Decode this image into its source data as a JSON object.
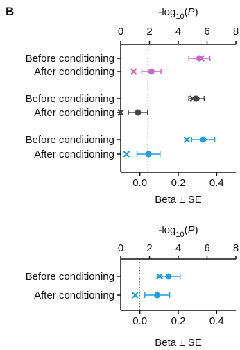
{
  "panel_letter": "B",
  "chart_data": [
    {
      "type": "scatter",
      "title": "",
      "top_axis": {
        "label_prefix": "-log",
        "label_sub": "10",
        "label_open": "(",
        "label_italic": "P",
        "label_close": ")",
        "ticks": [
          0,
          2,
          4,
          6,
          8
        ],
        "range": [
          0,
          8
        ]
      },
      "bottom_axis": {
        "label": "Beta ± SE",
        "ticks": [
          "0.0",
          "0.2",
          "0.4"
        ],
        "tick_values": [
          0.0,
          0.2,
          0.4
        ],
        "range": [
          -0.1,
          0.5
        ]
      },
      "reference_line": {
        "style": "dotted",
        "top_axis_value": 1.9
      },
      "rows": [
        {
          "label": "Before conditioning",
          "color": "#c868c8",
          "beta": 0.31,
          "se": 0.055,
          "neglogp": 5.6
        },
        {
          "label": "After conditioning",
          "color": "#c868c8",
          "beta": 0.06,
          "se": 0.05,
          "neglogp": 0.9
        },
        {
          "label": "Before conditioning",
          "color": "#444444",
          "beta": 0.295,
          "se": 0.04,
          "neglogp": 5.0
        },
        {
          "label": "After conditioning",
          "color": "#444444",
          "beta": -0.01,
          "se": 0.05,
          "neglogp": 0.0
        },
        {
          "label": "Before conditioning",
          "color": "#1a9fe3",
          "beta": 0.33,
          "se": 0.06,
          "neglogp": 4.6
        },
        {
          "label": "After conditioning",
          "color": "#1a9fe3",
          "beta": 0.045,
          "se": 0.06,
          "neglogp": 0.4
        }
      ],
      "groups": [
        [
          0,
          1
        ],
        [
          2,
          3
        ],
        [
          4,
          5
        ]
      ]
    },
    {
      "type": "scatter",
      "title": "",
      "top_axis": {
        "label_prefix": "-log",
        "label_sub": "10",
        "label_open": "(",
        "label_italic": "P",
        "label_close": ")",
        "ticks": [
          0,
          2,
          4,
          6,
          8
        ],
        "range": [
          0,
          8
        ]
      },
      "bottom_axis": {
        "label": "Beta ± SE",
        "ticks": [
          "0.0",
          "0.2",
          "0.4"
        ],
        "tick_values": [
          0.0,
          0.2,
          0.4
        ],
        "range": [
          -0.1,
          0.5
        ]
      },
      "reference_line": {
        "style": "dotted",
        "top_axis_value": 1.3
      },
      "rows": [
        {
          "label": "Before conditioning",
          "color": "#1a9fe3",
          "beta": 0.15,
          "se": 0.06,
          "neglogp": 2.7
        },
        {
          "label": "After conditioning",
          "color": "#1a9fe3",
          "beta": 0.09,
          "se": 0.065,
          "neglogp": 1.0
        }
      ],
      "groups": [
        [
          0,
          1
        ]
      ]
    }
  ]
}
